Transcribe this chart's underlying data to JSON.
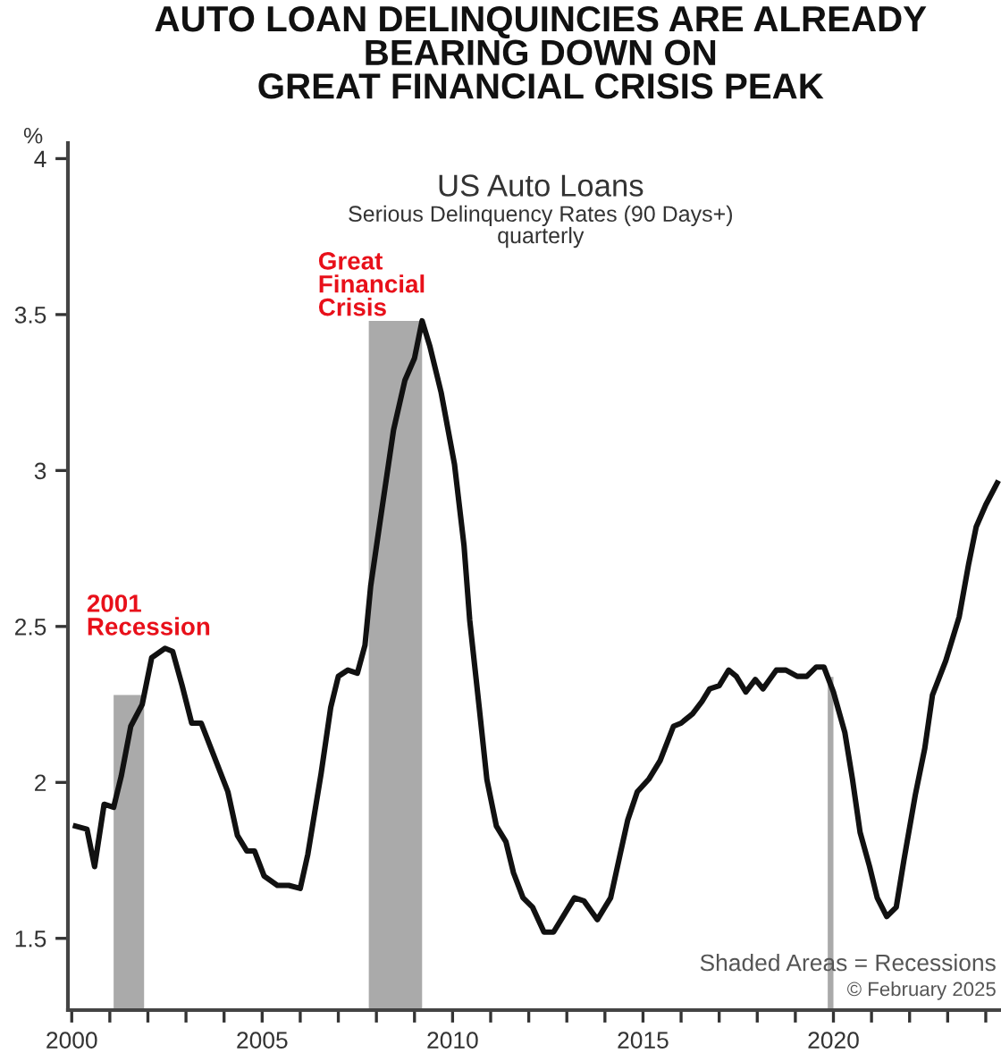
{
  "chart_data": {
    "type": "line",
    "title": "AUTO LOAN DELINQUINCIES ARE ALREADY\nBEARING DOWN ON\nGREAT FINANCIAL CRISIS PEAK",
    "subtitle": "US Auto Loans\nSerious Delinquency Rates (90 Days+)\nquarterly",
    "ylabel": "%",
    "series": [
      {
        "color": "#111111",
        "x": [
          2000.1,
          2000.4,
          2000.6,
          2000.85,
          2001.1,
          2001.3,
          2001.55,
          2001.85,
          2002.1,
          2002.45,
          2002.65,
          2002.9,
          2003.15,
          2003.4,
          2003.75,
          2004.1,
          2004.35,
          2004.6,
          2004.8,
          2005.05,
          2005.4,
          2005.7,
          2006.0,
          2006.2,
          2006.55,
          2006.8,
          2007.0,
          2007.25,
          2007.5,
          2007.7,
          2007.85,
          2008.1,
          2008.45,
          2008.75,
          2009.0,
          2009.2,
          2009.4,
          2009.7,
          2010.05,
          2010.3,
          2010.45,
          2010.7,
          2010.9,
          2011.15,
          2011.4,
          2011.6,
          2011.85,
          2012.1,
          2012.4,
          2012.65,
          2012.9,
          2013.2,
          2013.45,
          2013.8,
          2014.15,
          2014.4,
          2014.6,
          2014.85,
          2015.15,
          2015.45,
          2015.8,
          2016.0,
          2016.3,
          2016.55,
          2016.75,
          2017.0,
          2017.25,
          2017.45,
          2017.7,
          2017.95,
          2018.15,
          2018.5,
          2018.75,
          2019.05,
          2019.3,
          2019.55,
          2019.75,
          2020.0,
          2020.3,
          2020.5,
          2020.7,
          2020.95,
          2021.15,
          2021.4,
          2021.65,
          2021.85,
          2022.15,
          2022.4,
          2022.6,
          2022.95,
          2023.3,
          2023.55,
          2023.75,
          2024.0,
          2024.3
        ],
        "values": [
          1.86,
          1.85,
          1.73,
          1.93,
          1.92,
          2.02,
          2.18,
          2.25,
          2.4,
          2.43,
          2.42,
          2.31,
          2.19,
          2.19,
          2.08,
          1.97,
          1.83,
          1.78,
          1.78,
          1.7,
          1.67,
          1.67,
          1.66,
          1.77,
          2.03,
          2.24,
          2.34,
          2.36,
          2.35,
          2.44,
          2.63,
          2.84,
          3.13,
          3.29,
          3.36,
          3.48,
          3.4,
          3.25,
          3.02,
          2.76,
          2.52,
          2.24,
          2.01,
          1.86,
          1.81,
          1.71,
          1.63,
          1.6,
          1.52,
          1.52,
          1.57,
          1.63,
          1.62,
          1.56,
          1.63,
          1.77,
          1.88,
          1.97,
          2.01,
          2.07,
          2.18,
          2.19,
          2.22,
          2.26,
          2.3,
          2.31,
          2.36,
          2.34,
          2.29,
          2.33,
          2.3,
          2.36,
          2.36,
          2.34,
          2.34,
          2.37,
          2.37,
          2.29,
          2.16,
          2.01,
          1.84,
          1.73,
          1.63,
          1.57,
          1.6,
          1.75,
          1.96,
          2.11,
          2.28,
          2.39,
          2.53,
          2.7,
          2.82,
          2.89,
          2.96
        ]
      }
    ],
    "xlim": [
      1999.9,
      2024.4
    ],
    "ylim": [
      1.27,
      4.05
    ],
    "xticks": [
      2000,
      {
        "value": 2001,
        "label": null
      },
      {
        "value": 2002,
        "label": null
      },
      {
        "value": 2003,
        "label": null
      },
      {
        "value": 2004,
        "label": null
      },
      2005,
      {
        "value": 2006,
        "label": null
      },
      {
        "value": 2007,
        "label": null
      },
      {
        "value": 2008,
        "label": null
      },
      {
        "value": 2009,
        "label": null
      },
      2010,
      {
        "value": 2011,
        "label": null
      },
      {
        "value": 2012,
        "label": null
      },
      {
        "value": 2013,
        "label": null
      },
      {
        "value": 2014,
        "label": null
      },
      2015,
      {
        "value": 2016,
        "label": null
      },
      {
        "value": 2017,
        "label": null
      },
      {
        "value": 2018,
        "label": null
      },
      {
        "value": 2019,
        "label": null
      },
      2020,
      {
        "value": 2021,
        "label": null
      },
      {
        "value": 2022,
        "label": null
      },
      {
        "value": 2023,
        "label": null
      },
      {
        "value": 2024,
        "label": null
      }
    ],
    "yticks": [
      1.5,
      2,
      2.5,
      3,
      3.5,
      4
    ],
    "bands": [
      {
        "axis": "x",
        "from": 2001.1,
        "to": 2001.9,
        "color": "#aaaaaa"
      },
      {
        "axis": "x",
        "from": 2007.8,
        "to": 2009.2,
        "color": "#aaaaaa"
      },
      {
        "axis": "x",
        "from": 2019.85,
        "to": 2020.0,
        "color": "#aaaaaa"
      }
    ],
    "annotations": [
      "2001\nRecession",
      "Great\nFinancial\nCrisis",
      "Shaded Areas = Recessions",
      "© February 2025"
    ],
    "grid": false,
    "line_style": "solid"
  }
}
